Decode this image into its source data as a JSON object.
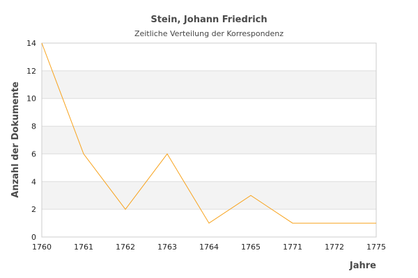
{
  "chart_data": {
    "type": "line",
    "title": "Stein, Johann Friedrich",
    "subtitle": "Zeitliche Verteilung der Korrespondenz",
    "xlabel": "Jahre",
    "ylabel": "Anzahl der Dokumente",
    "categories": [
      "1760",
      "1761",
      "1762",
      "1763",
      "1764",
      "1765",
      "1771",
      "1772",
      "1775"
    ],
    "values": [
      14,
      6,
      2,
      6,
      1,
      3,
      1,
      1,
      1
    ],
    "ylim": [
      0,
      14
    ],
    "yticks": [
      0,
      2,
      4,
      6,
      8,
      10,
      12,
      14
    ],
    "line_color": "#f7a21b",
    "band_color": "#f3f3f3",
    "grid_color": "#dddddd",
    "legend": "none"
  }
}
